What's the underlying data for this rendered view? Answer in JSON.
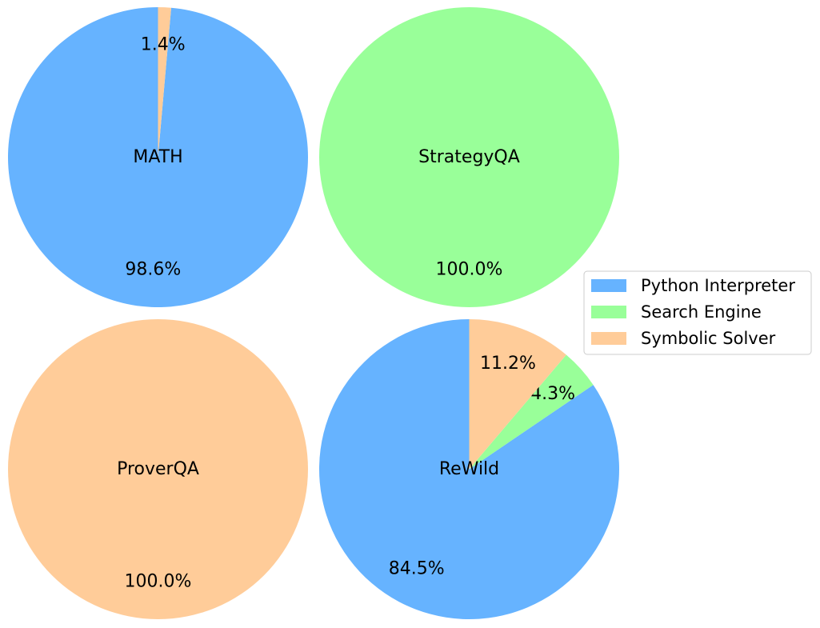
{
  "chart_data": {
    "type": "pie",
    "legend": {
      "placement": "right",
      "entries": [
        {
          "label": "Python Interpreter",
          "color": "#66b3ff"
        },
        {
          "label": "Search Engine",
          "color": "#99ff99"
        },
        {
          "label": "Symbolic Solver",
          "color": "#ffcc99"
        }
      ]
    },
    "charts": [
      {
        "name": "MATH",
        "slices": [
          {
            "label": "Python Interpreter",
            "value": 98.6,
            "display": "98.6%"
          },
          {
            "label": "Symbolic Solver",
            "value": 1.4,
            "display": "1.4%"
          }
        ]
      },
      {
        "name": "StrategyQA",
        "slices": [
          {
            "label": "Search Engine",
            "value": 100.0,
            "display": "100.0%"
          }
        ]
      },
      {
        "name": "ProverQA",
        "slices": [
          {
            "label": "Symbolic Solver",
            "value": 100.0,
            "display": "100.0%"
          }
        ]
      },
      {
        "name": "ReWild",
        "slices": [
          {
            "label": "Python Interpreter",
            "value": 84.5,
            "display": "84.5%"
          },
          {
            "label": "Search Engine",
            "value": 4.3,
            "display": "4.3%"
          },
          {
            "label": "Symbolic Solver",
            "value": 11.2,
            "display": "11.2%"
          }
        ]
      }
    ]
  }
}
